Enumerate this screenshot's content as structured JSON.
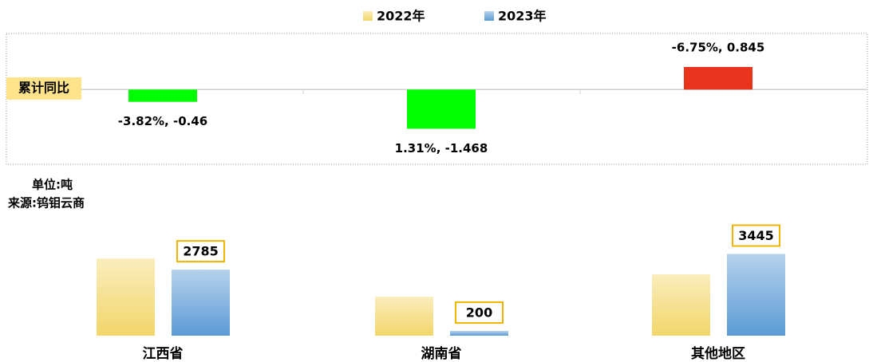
{
  "chart_data": [
    {
      "type": "bar",
      "ylabel": "累计同比",
      "categories": [
        null,
        null,
        null
      ],
      "values": [
        -0.46,
        -1.468,
        0.845
      ],
      "value_labels": [
        "-3.82%, -0.46",
        "1.31%, -1.468",
        "-6.75%, 0.845"
      ],
      "colors": [
        "#00ff00",
        "#00ff00",
        "#e8341c"
      ],
      "ylim": [
        -2.8,
        2.1
      ]
    },
    {
      "type": "grouped_bar",
      "annotations": [
        "单位:吨",
        "来源:钨钼云商"
      ],
      "categories": [
        "江西省",
        "湖南省",
        "其他地区"
      ],
      "series": [
        {
          "name": "2022年",
          "color": "#f2d66a",
          "values": [
            3250,
            1640,
            2580
          ]
        },
        {
          "name": "2023年",
          "color": "#5b9bd5",
          "values": [
            2785,
            200,
            3445
          ]
        }
      ],
      "labeled_series": 1,
      "ylim": [
        0,
        4200
      ]
    }
  ]
}
